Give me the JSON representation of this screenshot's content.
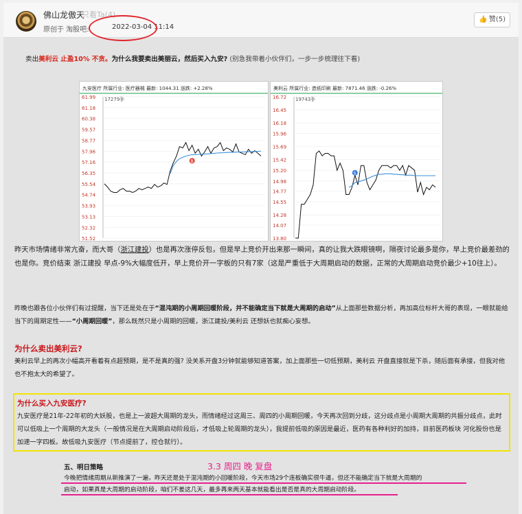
{
  "post": {
    "author": "佛山龙傲天",
    "author_extra": "只看Ta(4)",
    "source_label": "原创于 淘股吧:",
    "timestamp": "2022-03-04 11:14",
    "like_label": "赞(5)"
  },
  "intro": {
    "a": "卖出",
    "b": "美利云",
    "c": " 止盈10% 不贪。",
    "d": "为什么我要卖出美丽云，然后买入九安?",
    "e": " (别急我带着小伙伴们，一步一步梳理往下看)"
  },
  "colors": {
    "accent_red": "#c8171b",
    "highlight_yellow": "#f3e400",
    "pen_magenta": "#e6208c"
  },
  "chart_data": [
    {
      "type": "line",
      "header": "九安医疗 所属行业: 医疗器械 最新: 1044.31 涨跌: +2.28%",
      "volume_label": "17279手",
      "y_ticks": [
        "61.99",
        "61.18",
        "60.38",
        "59.57",
        "58.77",
        "57.96",
        "57.16",
        "56.35",
        "55.54",
        "54.74",
        "53.93",
        "53.13",
        "52.32",
        "51.52"
      ],
      "ylim": [
        51.52,
        61.99
      ],
      "series": [
        {
          "values": [
            55.54,
            55.3,
            55.0,
            54.9,
            54.9,
            55.1,
            55.2,
            55.0,
            55.0,
            54.9,
            55.0,
            55.2,
            55.1,
            55.2,
            55.3,
            55.2,
            55.5,
            55.3,
            55.4,
            55.6,
            55.5,
            56.5,
            57.1,
            57.6,
            58.3,
            58.2,
            58.6,
            58.0,
            58.4,
            57.8,
            58.1,
            57.6,
            57.9,
            58.3,
            57.8,
            58.2,
            58.3,
            58.6,
            58.0,
            58.2,
            58.1,
            57.9,
            58.5,
            57.9,
            57.8,
            57.7,
            58.1,
            57.8,
            58.0,
            57.8,
            57.6
          ]
        },
        {
          "values": [
            null,
            null,
            null,
            null,
            null,
            null,
            null,
            null,
            null,
            null,
            null,
            null,
            null,
            null,
            null,
            null,
            null,
            null,
            null,
            null,
            null,
            56.3,
            56.9,
            57.2,
            57.4,
            57.5,
            57.6,
            57.65,
            57.7,
            57.7,
            57.72,
            57.74,
            57.75,
            57.76,
            57.78,
            57.8,
            57.82,
            57.84,
            57.85,
            57.86,
            57.87,
            57.88,
            57.89,
            57.9,
            57.9,
            57.91,
            57.92,
            57.93,
            57.94,
            57.95,
            57.96
          ]
        }
      ],
      "marker": {
        "label": "B",
        "x": 28,
        "y": 57.25
      }
    },
    {
      "type": "line",
      "header": "美利云 所属行业: 造纸印刷 最新: 7871.46 涨跌: -0.26%",
      "volume_label": "19743手",
      "y_ticks": [
        "16.72",
        "16.45",
        "16.18",
        "15.96",
        "15.69",
        "15.42",
        "15.20",
        "14.98",
        "14.77",
        "14.55",
        "14.28",
        "14.07",
        "13.80"
      ],
      "ylim": [
        13.8,
        16.72
      ],
      "series": [
        {
          "values": [
            13.8,
            13.8,
            14.5,
            14.5,
            14.6,
            14.7,
            14.9,
            15.55,
            15.6,
            15.5,
            15.55,
            15.55,
            15.5,
            15.5,
            15.2,
            15.35,
            15.2,
            14.7,
            14.7,
            14.85,
            15.1,
            14.9,
            15.3,
            15.3,
            14.95,
            14.8,
            14.9,
            15.0,
            15.2,
            15.3,
            15.3,
            15.3,
            15.25,
            15.3,
            15.3,
            15.2,
            15.3,
            15.1,
            15.3,
            15.25,
            15.2,
            14.75,
            14.95,
            14.7,
            14.85,
            14.8,
            14.9,
            14.85
          ]
        },
        {
          "values": [
            null,
            null,
            null,
            null,
            null,
            null,
            null,
            null,
            null,
            null,
            null,
            null,
            null,
            null,
            null,
            null,
            null,
            null,
            14.85,
            14.88,
            14.95,
            14.96,
            14.98,
            15.0,
            15.02,
            15.05,
            15.08,
            15.1,
            15.12,
            15.12,
            15.13,
            15.13,
            15.13,
            15.12,
            15.12,
            15.11,
            15.11,
            15.1,
            15.1,
            15.1,
            15.09,
            15.09,
            15.09,
            15.09,
            15.09,
            15.09,
            15.09,
            15.09
          ]
        }
      ],
      "marker": {
        "label": "S",
        "x": 20,
        "y": 15.15
      }
    }
  ],
  "para1": {
    "a": "昨天市场情绪非常亢奋，而大哥（",
    "b": "浙江建投",
    "c": "）也是再次涨停反包，但是早上竞价开出来那一瞬间，真的让我大跌眼镜啊，隔夜讨论最多是你，早上竞价最差劲的也是你。竞价结束 浙江建投 早点-9%大幅度低开，早上竞价开一字板的只有7家（这是严重低于大周期启动的数据，正常的大周期启动竞价最少+10往上）。"
  },
  "para2": {
    "a": "昨晚也跟各位小伙伴们有过提醒，当下还是处在于",
    "b": "“混沌期的小周期回暖阶段，并不能确定当下就是大周期的启动”",
    "c": "从上面那些数据分析，再加高位标杆大哥的表现，一眼就能给当下的周期定性——",
    "d": "“小周期回暖”",
    "e": "，那么既然只是小周期的回暖，浙江建投/美利云 还想妖也就痴心妄想。"
  },
  "section1": {
    "title": "为什么卖出美利云?",
    "body": "美利云早上的再次小幅高开看着有点超预期，是不是真的强? 没关系开盘3分钟就能够知道答案，加上面那些一切低预期，美利云 开盘直接就是下杀，随后面有承接，但我对他也不抱太大的希望了。"
  },
  "section2": {
    "title": "为什么买入九安医疗?",
    "body": "九安医疗是21年-22年初的大妖股，也是上一波超大周期的龙头，而情绪经过这周三、周四的小周期回暖，今天再次回到分歧，这分歧点是小周期大周期的共振分歧点，此时可以低吸上一个周期的大龙头（一般情况是在大周期启动阶段后，才低吸上轮周期的龙头），我提前低吸的原因是最近，医药有各种利好的加持，目前医药板块 河化股份也是加速一字四板。故低吸九安医疗（节点提前了，控仓就行）。"
  },
  "handwritten": "3.3 周四 晚 复盘",
  "section3": {
    "title": "五、明日策略",
    "line1": "今晚把情绪周期从新推演了一遍，昨天还是处于混沌期的小回暖阶段，今天市场29个连板确实很牛逼，但还不能确定当下就是大周期的",
    "line2": "启动，如果真是大周期的启动阶段，咱们不差这几天，最多再来两天基本就能看出是否是真的大周期启动阶段。"
  }
}
